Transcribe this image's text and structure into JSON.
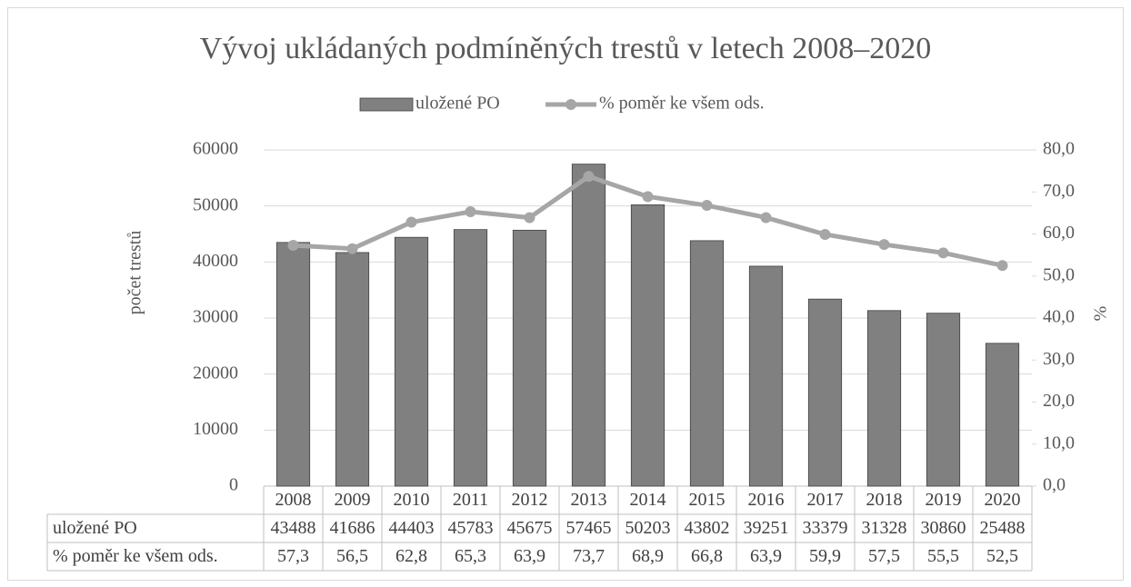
{
  "chart_data": {
    "type": "combo",
    "title": "Vývoj ukládaných podmíněných trestů v letech 2008–2020",
    "y_label": "počet trestů",
    "y2_label": "%",
    "categories": [
      "2008",
      "2009",
      "2010",
      "2011",
      "2012",
      "2013",
      "2014",
      "2015",
      "2016",
      "2017",
      "2018",
      "2019",
      "2020"
    ],
    "series": [
      {
        "name": "uložené PO",
        "type": "bar",
        "color": "#808080",
        "values": [
          43488,
          41686,
          44403,
          45783,
          45675,
          57465,
          50203,
          43802,
          39251,
          33379,
          31328,
          30860,
          25488
        ]
      },
      {
        "name": "% poměr ke všem ods.",
        "type": "line",
        "axis": "y2",
        "color": "#a6a6a6",
        "values": [
          57.3,
          56.5,
          62.8,
          65.3,
          63.9,
          73.7,
          68.9,
          66.8,
          63.9,
          59.9,
          57.5,
          55.5,
          52.5
        ],
        "value_labels": [
          "57,3",
          "56,5",
          "62,8",
          "65,3",
          "63,9",
          "73,7",
          "68,9",
          "66,8",
          "63,9",
          "59,9",
          "57,5",
          "55,5",
          "52,5"
        ]
      }
    ],
    "ylim": [
      0,
      60000
    ],
    "yticks": [
      0,
      10000,
      20000,
      30000,
      40000,
      50000,
      60000
    ],
    "y2lim": [
      0,
      80
    ],
    "y2ticks": [
      {
        "value": 0,
        "label": "0,0"
      },
      {
        "value": 10,
        "label": "10,0"
      },
      {
        "value": 20,
        "label": "20,0"
      },
      {
        "value": 30,
        "label": "30,0"
      },
      {
        "value": 40,
        "label": "40,0"
      },
      {
        "value": 50,
        "label": "50,0"
      },
      {
        "value": 60,
        "label": "60,0"
      },
      {
        "value": 70,
        "label": "70,0"
      },
      {
        "value": 80,
        "label": "80,0"
      }
    ],
    "grid": true,
    "legend": "top"
  }
}
